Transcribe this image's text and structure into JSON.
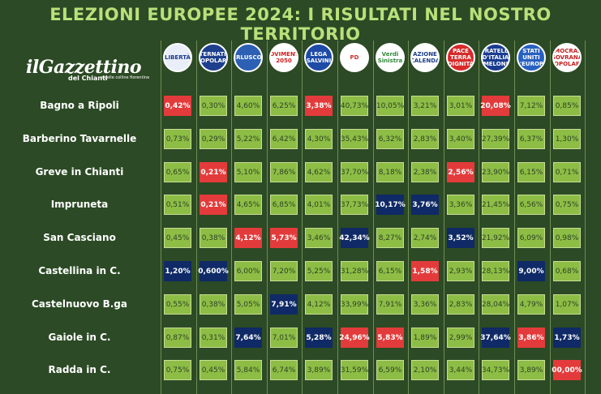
{
  "title": "ELEZIONI EUROPEE 2024: I RISULTATI NEL NOSTRO TERRITORIO",
  "logo": {
    "main": "ilGazzettino",
    "sub1": "del Chianti",
    "sub2": "e delle colline fiorentine"
  },
  "parties": [
    {
      "icon": "liberta-logo-icon",
      "label": "LIBERTÀ",
      "bg": "#e9eef8",
      "fg": "#1e3c8c"
    },
    {
      "icon": "alternativa-popolare-logo-icon",
      "label": "ALTERNATIVA POPOLARE",
      "bg": "#1d3f8e",
      "fg": "#ffffff"
    },
    {
      "icon": "forza-italia-logo-icon",
      "label": "BERLUSCONI",
      "bg": "#2d5fb5",
      "fg": "#ffffff"
    },
    {
      "icon": "movimento-5-stelle-logo-icon",
      "label": "MOVIMENTO 2050",
      "bg": "#ffffff",
      "fg": "#d21e1e"
    },
    {
      "icon": "lega-logo-icon",
      "label": "LEGA SALVINI",
      "bg": "#1e4ba8",
      "fg": "#ffffff"
    },
    {
      "icon": "pd-logo-icon",
      "label": "PD",
      "bg": "#ffffff",
      "fg": "#d42d2d"
    },
    {
      "icon": "verdi-sinistra-logo-icon",
      "label": "Verdi Sinistra",
      "bg": "#ffffff",
      "fg": "#2f8a3a"
    },
    {
      "icon": "azione-logo-icon",
      "label": "AZIONE CALENDA",
      "bg": "#ffffff",
      "fg": "#1c3e86"
    },
    {
      "icon": "pace-terra-dignita-logo-icon",
      "label": "PACE TERRA DIGNITÀ",
      "bg": "#d82a2a",
      "fg": "#ffffff"
    },
    {
      "icon": "fratelli-ditalia-logo-icon",
      "label": "FRATELLI D'ITALIA MELONI",
      "bg": "#1a3d8f",
      "fg": "#ffffff"
    },
    {
      "icon": "stati-uniti-europa-logo-icon",
      "label": "STATI UNITI D'EUROPA",
      "bg": "#2860c2",
      "fg": "#ffffff"
    },
    {
      "icon": "democrazia-sovrana-popolare-logo-icon",
      "label": "DEMOCRAZIA SOVRANA POPOLARE",
      "bg": "#ffffff",
      "fg": "#c42020"
    }
  ],
  "rows": [
    {
      "name": "Bagno a Ripoli",
      "values": [
        "0,42%",
        "0,30%",
        "4,60%",
        "6,25%",
        "3,38%",
        "40,73%",
        "10,05%",
        "3,21%",
        "3,01%",
        "20,08%",
        "7,12%",
        "0,85%"
      ],
      "hl": [
        "r",
        "",
        "",
        "",
        "r",
        "",
        "",
        "",
        "",
        "r",
        "",
        ""
      ]
    },
    {
      "name": "Barberino Tavarnelle",
      "values": [
        "0,73%",
        "0,29%",
        "5,22%",
        "6,42%",
        "4,30%",
        "35,43%",
        "6,32%",
        "2,83%",
        "3,40%",
        "27,39%",
        "6,37%",
        "1,30%"
      ],
      "hl": [
        "",
        "",
        "",
        "",
        "",
        "",
        "",
        "",
        "",
        "",
        "",
        ""
      ]
    },
    {
      "name": "Greve in Chianti",
      "values": [
        "0,65%",
        "0,21%",
        "5,10%",
        "7,86%",
        "4,62%",
        "37,70%",
        "8,18%",
        "2,38%",
        "2,56%",
        "23,90%",
        "6,15%",
        "0,71%"
      ],
      "hl": [
        "",
        "r",
        "",
        "",
        "",
        "",
        "",
        "",
        "r",
        "",
        "",
        ""
      ]
    },
    {
      "name": "Impruneta",
      "values": [
        "0,51%",
        "0,21%",
        "4,65%",
        "6,85%",
        "4,01%",
        "37,73%",
        "10,17%",
        "3,76%",
        "3,36%",
        "21,45%",
        "6,56%",
        "0,75%"
      ],
      "hl": [
        "",
        "r",
        "",
        "",
        "",
        "",
        "b",
        "b",
        "",
        "",
        "",
        ""
      ]
    },
    {
      "name": "San Casciano",
      "values": [
        "0,45%",
        "0,38%",
        "4,12%",
        "5,73%",
        "3,46%",
        "42,34%",
        "8,27%",
        "2,74%",
        "3,52%",
        "21,92%",
        "6,09%",
        "0,98%"
      ],
      "hl": [
        "",
        "",
        "r",
        "r",
        "",
        "b",
        "",
        "",
        "b",
        "",
        "",
        ""
      ]
    },
    {
      "name": "Castellina in C.",
      "values": [
        "1,20%",
        "0,600%",
        "6,00%",
        "7,20%",
        "5,25%",
        "31,28%",
        "6,15%",
        "1,58%",
        "2,93%",
        "28,13%",
        "9,00%",
        "0,68%"
      ],
      "hl": [
        "b",
        "b",
        "",
        "",
        "",
        "",
        "",
        "r",
        "",
        "",
        "b",
        ""
      ]
    },
    {
      "name": "Castelnuovo B.ga",
      "values": [
        "0,55%",
        "0,38%",
        "5,05%",
        "7,91%",
        "4,12%",
        "33,99%",
        "7,91%",
        "3,36%",
        "2,83%",
        "28,04%",
        "4,79%",
        "1,07%"
      ],
      "hl": [
        "",
        "",
        "",
        "b",
        "",
        "",
        "",
        "",
        "",
        "",
        "",
        ""
      ]
    },
    {
      "name": "Gaiole in C.",
      "values": [
        "0,87%",
        "0,31%",
        "7,64%",
        "7,01%",
        "5,28%",
        "24,96%",
        "5,83%",
        "1,89%",
        "2,99%",
        "37,64%",
        "3,86%",
        "1,73%"
      ],
      "hl": [
        "",
        "",
        "b",
        "",
        "b",
        "r",
        "r",
        "",
        "",
        "b",
        "r",
        "b"
      ]
    },
    {
      "name": "Radda in C.",
      "values": [
        "0,75%",
        "0,45%",
        "5,84%",
        "6,74%",
        "3,89%",
        "31,59%",
        "6,59%",
        "2,10%",
        "3,44%",
        "34,73%",
        "3,89%",
        "00,00%"
      ],
      "hl": [
        "",
        "",
        "",
        "",
        "",
        "",
        "",
        "",
        "",
        "",
        "",
        "r"
      ]
    }
  ]
}
